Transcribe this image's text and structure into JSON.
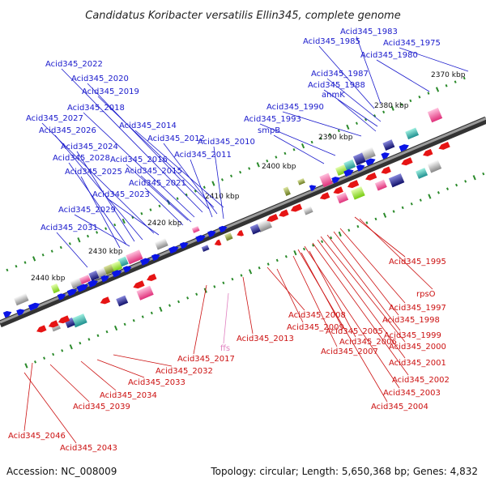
{
  "title": "Candidatus Koribacter versatilis Ellin345, complete genome",
  "footer": {
    "accession": "Accession: NC_008009",
    "summary": "Topology: circular; Length: 5,650,368 bp; Genes: 4,832"
  },
  "scale_labels": [
    "2370 kbp",
    "2380 kbp",
    "2390 kbp",
    "2400 kbp",
    "2410 kbp",
    "2420 kbp",
    "2430 kbp",
    "2440 kbp"
  ],
  "forward_labels": [
    "Acid345_1983",
    "Acid345_1985",
    "Acid345_1975",
    "Acid345_1980",
    "Acid345_2022",
    "Acid345_2020",
    "Acid345_2019",
    "Acid345_1987",
    "Acid345_1988",
    "anmK",
    "Acid345_2018",
    "Acid345_1990",
    "Acid345_2027",
    "Acid345_2014",
    "Acid345_1993",
    "Acid345_2026",
    "smpB",
    "Acid345_2012",
    "Acid345_2010",
    "Acid345_2024",
    "Acid345_2011",
    "Acid345_2028",
    "Acid345_2016",
    "Acid345_2025",
    "Acid345_2015",
    "Acid345_2021",
    "Acid345_2023",
    "Acid345_2029",
    "Acid345_2031"
  ],
  "reverse_labels": [
    "Acid345_1995",
    "rpsO",
    "Acid345_1997",
    "Acid345_1998",
    "Acid345_2008",
    "Acid345_1999",
    "Acid345_2009",
    "Acid345_2005",
    "Acid345_2013",
    "Acid345_2006",
    "Acid345_2000",
    "Acid345_2007",
    "Acid345_2017",
    "Acid345_2001",
    "Acid345_2032",
    "Acid345_2002",
    "Acid345_2033",
    "Acid345_2003",
    "Acid345_2034",
    "Acid345_2004",
    "Acid345_2039",
    "Acid345_2046",
    "Acid345_2043"
  ],
  "rna_label": "ffs",
  "colors": {
    "forward_gene": "#0a14e6",
    "reverse_gene": "#e61414",
    "forward_label": "#1a1acc",
    "reverse_label": "#cc1111",
    "rna_label": "#e080c0",
    "backbone": "#555555",
    "tick": "#2a8a2a"
  }
}
